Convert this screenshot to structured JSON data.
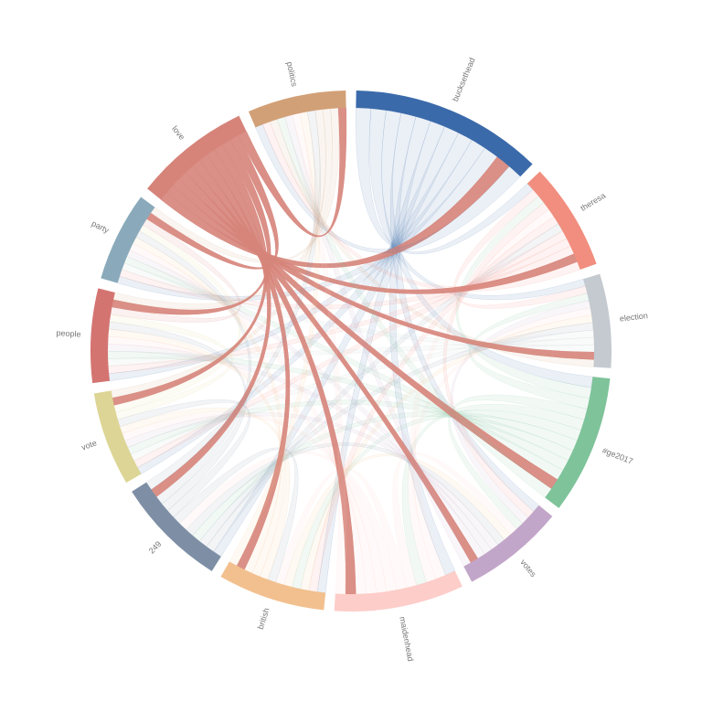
{
  "chart_data": {
    "type": "chord",
    "categories": [
      "bucksethead",
      "theresa",
      "election",
      "#ge2017",
      "votes",
      "maidenhead",
      "british",
      "249",
      "vote",
      "people",
      "party",
      "love",
      "politics"
    ],
    "values": [
      43,
      24,
      21,
      31,
      23,
      29,
      24,
      25,
      21,
      21,
      20,
      26,
      22
    ],
    "colors": [
      "#3b6aaa",
      "#f28e7f",
      "#c4cacf",
      "#7fc39a",
      "#c2a6c9",
      "#fdcdc9",
      "#f2c08e",
      "#7e8fa5",
      "#ddd595",
      "#d47471",
      "#8aaabb",
      "#d6847a",
      "#d2a077"
    ],
    "highlight": "love"
  }
}
